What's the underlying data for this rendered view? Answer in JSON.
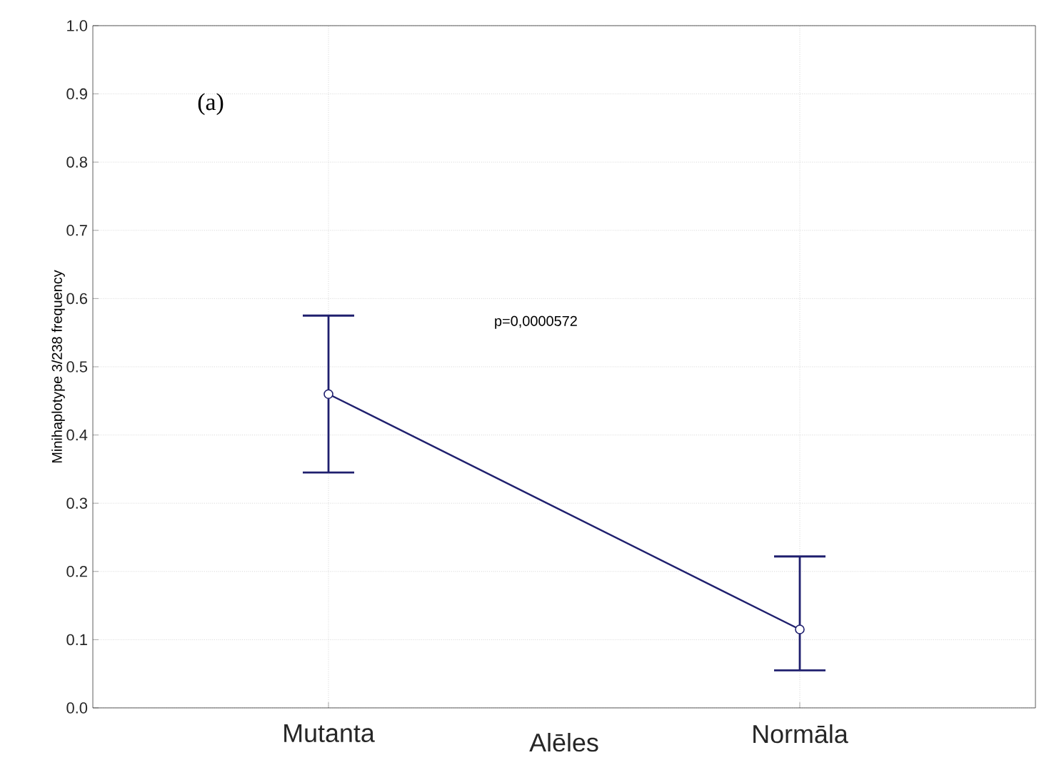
{
  "chart_data": {
    "type": "line",
    "ylabel": "Minihaplotype 3/238 frequency",
    "xlabel": "Alēles",
    "categories": [
      "Mutanta",
      "Normāla"
    ],
    "values": [
      0.46,
      0.115
    ],
    "errors": [
      [
        0.345,
        0.575
      ],
      [
        0.055,
        0.222
      ]
    ],
    "color": "#1f1f6e",
    "marker": "circle",
    "line_style": "solid",
    "ylim": [
      0,
      1
    ],
    "yticks": [
      {
        "value": 0,
        "label": "0.0"
      },
      {
        "value": 0.1,
        "label": "0.1"
      },
      {
        "value": 0.2,
        "label": "0.2"
      },
      {
        "value": 0.3,
        "label": "0.3"
      },
      {
        "value": 0.4,
        "label": "0.4"
      },
      {
        "value": 0.5,
        "label": "0.5"
      },
      {
        "value": 0.6,
        "label": "0.6"
      },
      {
        "value": 0.7,
        "label": "0.7"
      },
      {
        "value": 0.8,
        "label": "0.8"
      },
      {
        "value": 0.9,
        "label": "0.9"
      },
      {
        "value": 1,
        "label": "1.0"
      }
    ],
    "grid": true,
    "annotations": [
      "(a)",
      "p=0,0000572"
    ]
  }
}
